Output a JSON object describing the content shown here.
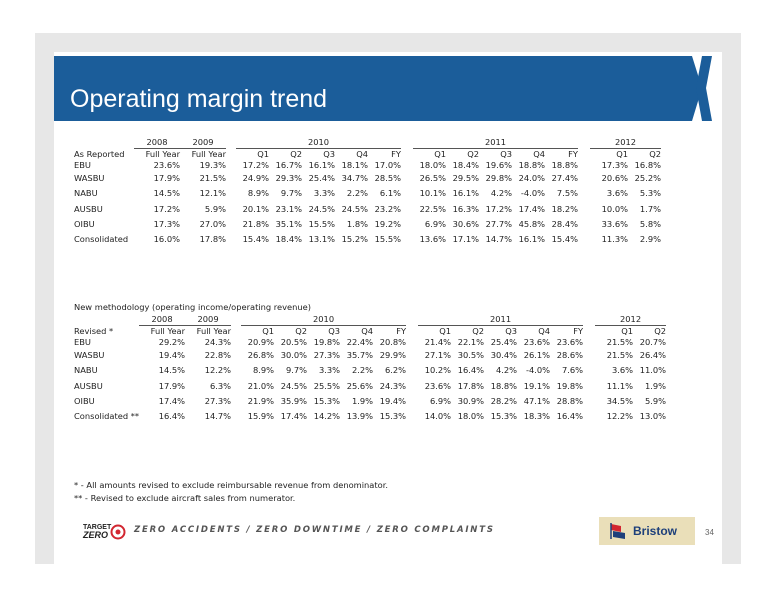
{
  "title": "Operating margin trend",
  "page_number": "34",
  "footer": {
    "tagline": "ZERO ACCIDENTS / ZERO DOWNTIME / ZERO COMPLAINTS",
    "target_zero_logo": [
      "TARGET",
      "ZERO"
    ],
    "brand": "Bristow"
  },
  "table1": {
    "years": [
      "2008",
      "2009",
      "2010",
      "2011",
      "2012"
    ],
    "corner_label": "As Reported",
    "columns": [
      "Full Year",
      "Full Year",
      "Q1",
      "Q2",
      "Q3",
      "Q4",
      "FY",
      "Q1",
      "Q2",
      "Q3",
      "Q4",
      "FY",
      "Q1",
      "Q2"
    ],
    "rows": [
      {
        "label": "EBU",
        "values": [
          "23.6%",
          "19.3%",
          "17.2%",
          "16.7%",
          "16.1%",
          "18.1%",
          "17.0%",
          "18.0%",
          "18.4%",
          "19.6%",
          "18.8%",
          "18.8%",
          "17.3%",
          "16.8%"
        ]
      },
      {
        "label": "WASBU",
        "values": [
          "17.9%",
          "21.5%",
          "24.9%",
          "29.3%",
          "25.4%",
          "34.7%",
          "28.5%",
          "26.5%",
          "29.5%",
          "29.8%",
          "24.0%",
          "27.4%",
          "20.6%",
          "25.2%"
        ]
      },
      {
        "label": "NABU",
        "values": [
          "14.5%",
          "12.1%",
          "8.9%",
          "9.7%",
          "3.3%",
          "2.2%",
          "6.1%",
          "10.1%",
          "16.1%",
          "4.2%",
          "-4.0%",
          "7.5%",
          "3.6%",
          "5.3%"
        ]
      },
      {
        "label": "AUSBU",
        "values": [
          "17.2%",
          "5.9%",
          "20.1%",
          "23.1%",
          "24.5%",
          "24.5%",
          "23.2%",
          "22.5%",
          "16.3%",
          "17.2%",
          "17.4%",
          "18.2%",
          "10.0%",
          "1.7%"
        ]
      },
      {
        "label": "OIBU",
        "values": [
          "17.3%",
          "27.0%",
          "21.8%",
          "35.1%",
          "15.5%",
          "1.8%",
          "19.2%",
          "6.9%",
          "30.6%",
          "27.7%",
          "45.8%",
          "28.4%",
          "33.6%",
          "5.8%"
        ]
      },
      {
        "label": "Consolidated",
        "values": [
          "16.0%",
          "17.8%",
          "15.4%",
          "18.4%",
          "13.1%",
          "15.2%",
          "15.5%",
          "13.6%",
          "17.1%",
          "14.7%",
          "16.1%",
          "15.4%",
          "11.3%",
          "2.9%"
        ]
      }
    ]
  },
  "method_label": "New methodology (operating income/operating revenue)",
  "table2": {
    "years": [
      "2008",
      "2009",
      "2010",
      "2011",
      "2012"
    ],
    "corner_label": "Revised *",
    "columns": [
      "Full Year",
      "Full Year",
      "Q1",
      "Q2",
      "Q3",
      "Q4",
      "FY",
      "Q1",
      "Q2",
      "Q3",
      "Q4",
      "FY",
      "Q1",
      "Q2"
    ],
    "rows": [
      {
        "label": "EBU",
        "values": [
          "29.2%",
          "24.3%",
          "20.9%",
          "20.5%",
          "19.8%",
          "22.4%",
          "20.8%",
          "21.4%",
          "22.1%",
          "25.4%",
          "23.6%",
          "23.6%",
          "21.5%",
          "20.7%"
        ]
      },
      {
        "label": "WASBU",
        "values": [
          "19.4%",
          "22.8%",
          "26.8%",
          "30.0%",
          "27.3%",
          "35.7%",
          "29.9%",
          "27.1%",
          "30.5%",
          "30.4%",
          "26.1%",
          "28.6%",
          "21.5%",
          "26.4%"
        ]
      },
      {
        "label": "NABU",
        "values": [
          "14.5%",
          "12.2%",
          "8.9%",
          "9.7%",
          "3.3%",
          "2.2%",
          "6.2%",
          "10.2%",
          "16.4%",
          "4.2%",
          "-4.0%",
          "7.6%",
          "3.6%",
          "11.0%"
        ]
      },
      {
        "label": "AUSBU",
        "values": [
          "17.9%",
          "6.3%",
          "21.0%",
          "24.5%",
          "25.5%",
          "25.6%",
          "24.3%",
          "23.6%",
          "17.8%",
          "18.8%",
          "19.1%",
          "19.8%",
          "11.1%",
          "1.9%"
        ]
      },
      {
        "label": "OIBU",
        "values": [
          "17.4%",
          "27.3%",
          "21.9%",
          "35.9%",
          "15.3%",
          "1.9%",
          "19.4%",
          "6.9%",
          "30.9%",
          "28.2%",
          "47.1%",
          "28.8%",
          "34.5%",
          "5.9%"
        ]
      },
      {
        "label": "Consolidated **",
        "values": [
          "16.4%",
          "14.7%",
          "15.9%",
          "17.4%",
          "14.2%",
          "13.9%",
          "15.3%",
          "14.0%",
          "18.0%",
          "15.3%",
          "18.3%",
          "16.4%",
          "12.2%",
          "13.0%"
        ]
      }
    ]
  },
  "notes": [
    "* - All amounts revised to exclude reimbursable revenue from denominator.",
    "** - Revised to exclude aircraft sales from numerator."
  ],
  "colors": {
    "banner": "#1b5d9a",
    "slide_frame": "#e7e7e7",
    "bristow_box": "#eadfb9",
    "logo_red": "#d22630"
  }
}
